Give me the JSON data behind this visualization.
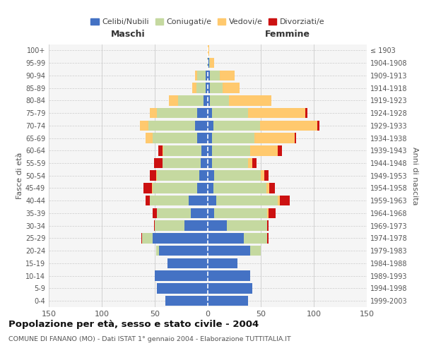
{
  "age_groups": [
    "0-4",
    "5-9",
    "10-14",
    "15-19",
    "20-24",
    "25-29",
    "30-34",
    "35-39",
    "40-44",
    "45-49",
    "50-54",
    "55-59",
    "60-64",
    "65-69",
    "70-74",
    "75-79",
    "80-84",
    "85-89",
    "90-94",
    "95-99",
    "100+"
  ],
  "birth_years": [
    "1999-2003",
    "1994-1998",
    "1989-1993",
    "1984-1988",
    "1979-1983",
    "1974-1978",
    "1969-1973",
    "1964-1968",
    "1959-1963",
    "1954-1958",
    "1949-1953",
    "1944-1948",
    "1939-1943",
    "1934-1938",
    "1929-1933",
    "1924-1928",
    "1919-1923",
    "1914-1918",
    "1909-1913",
    "1904-1908",
    "≤ 1903"
  ],
  "males": {
    "celibi": [
      40,
      48,
      50,
      38,
      46,
      52,
      22,
      16,
      18,
      10,
      8,
      7,
      6,
      10,
      12,
      10,
      4,
      2,
      2,
      0,
      0
    ],
    "coniugati": [
      0,
      0,
      0,
      0,
      3,
      10,
      28,
      32,
      37,
      42,
      40,
      36,
      36,
      42,
      44,
      38,
      24,
      9,
      8,
      1,
      0
    ],
    "vedovi": [
      0,
      0,
      0,
      0,
      0,
      0,
      0,
      0,
      0,
      1,
      1,
      0,
      1,
      7,
      8,
      7,
      9,
      4,
      2,
      0,
      0
    ],
    "divorziati": [
      0,
      0,
      0,
      0,
      0,
      1,
      1,
      4,
      4,
      8,
      6,
      8,
      4,
      0,
      0,
      0,
      0,
      0,
      0,
      0,
      0
    ]
  },
  "females": {
    "nubili": [
      38,
      42,
      40,
      28,
      40,
      34,
      18,
      6,
      8,
      5,
      6,
      4,
      4,
      4,
      5,
      4,
      2,
      2,
      2,
      1,
      0
    ],
    "coniugate": [
      0,
      0,
      0,
      0,
      10,
      22,
      38,
      50,
      58,
      50,
      44,
      34,
      36,
      40,
      44,
      34,
      18,
      12,
      9,
      1,
      0
    ],
    "vedove": [
      0,
      0,
      0,
      0,
      0,
      0,
      0,
      1,
      2,
      3,
      3,
      4,
      26,
      38,
      54,
      54,
      40,
      16,
      14,
      4,
      1
    ],
    "divorziate": [
      0,
      0,
      0,
      0,
      0,
      1,
      1,
      7,
      9,
      5,
      4,
      4,
      4,
      1,
      2,
      2,
      0,
      0,
      0,
      0,
      0
    ]
  },
  "colors": {
    "celibi": "#4472c4",
    "coniugati": "#c5d9a0",
    "vedovi": "#ffc96e",
    "divorziati": "#cc1111"
  },
  "title": "Popolazione per età, sesso e stato civile - 2004",
  "subtitle": "COMUNE DI FANANO (MO) - Dati ISTAT 1° gennaio 2004 - Elaborazione TUTTITALIA.IT",
  "xlabel_left": "Maschi",
  "xlabel_right": "Femmine",
  "ylabel_left": "Fasce di età",
  "ylabel_right": "Anni di nascita",
  "xlim": 150,
  "legend_labels": [
    "Celibi/Nubili",
    "Coniugati/e",
    "Vedovi/e",
    "Divorziati/e"
  ],
  "bg_color": "#ffffff",
  "grid_color": "#cccccc"
}
